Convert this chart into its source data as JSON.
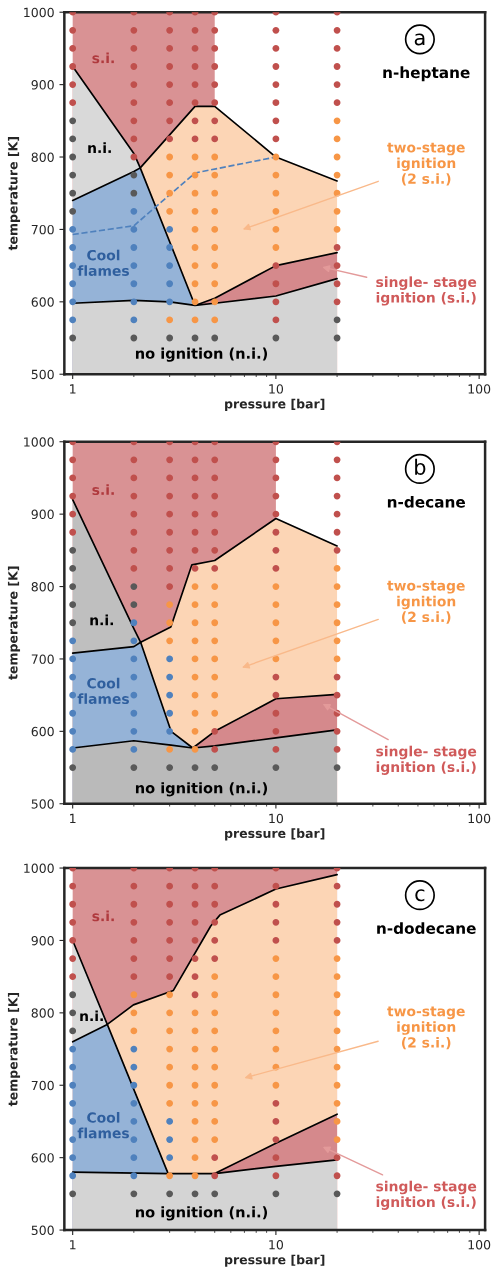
{
  "chart_data": [
    {
      "type": "scatter",
      "xlabel": "pressure [bar]",
      "ylabel": "temperature [K]",
      "log": "x",
      "xlim": [
        0.91,
        107
      ],
      "ylim": [
        500,
        1000
      ],
      "xticks": [
        1,
        10,
        100
      ],
      "yticks": [
        500,
        600,
        700,
        800,
        900,
        1000
      ],
      "annotations": [
        "a",
        "n-heptane",
        "s.i.",
        "n.i.",
        "Cool\nflames",
        "two-stage\nignition\n(2 s.i.)",
        "single- stage\nignition (s.i.)",
        "no ignition (n.i.)"
      ],
      "series": [
        {
          "type": "area",
          "color": "#d99294",
          "x": [
            1,
            5
          ],
          "values": [
            1000,
            1000
          ]
        },
        {
          "type": "area",
          "color": "#fcd5b5",
          "x": [
            2.15,
            4,
            5,
            10,
            20
          ],
          "values": [
            785,
            870,
            870,
            800,
            767
          ]
        },
        {
          "type": "area",
          "color": "#d9d9d9",
          "x": [
            1,
            2,
            2.15
          ],
          "values": [
            925,
            805,
            785
          ]
        },
        {
          "type": "area",
          "color": "#95b3d7",
          "x": [
            1,
            2,
            2.15,
            4
          ],
          "values": [
            740,
            780,
            785,
            595
          ]
        },
        {
          "type": "area",
          "color": "#d5898c",
          "x": [
            4,
            5,
            10,
            20
          ],
          "values": [
            595,
            605,
            650,
            668
          ]
        },
        {
          "type": "area",
          "color": "#d4d4d4",
          "x": [
            1,
            2,
            3,
            4,
            5,
            10,
            20
          ],
          "values": [
            598,
            602,
            600,
            595,
            598,
            608,
            632
          ]
        },
        {
          "type": "line",
          "color": "#4f81bd",
          "line_style": "dashed",
          "x": [
            1,
            2,
            4,
            10
          ],
          "values": [
            693,
            705,
            778,
            800
          ]
        },
        {
          "marker": "circle",
          "color": "#c0504d",
          "x": [
            1,
            1,
            1,
            1,
            1,
            1,
            2,
            2,
            2,
            2,
            2,
            2,
            2,
            2,
            2,
            3,
            3,
            3,
            3,
            3,
            3,
            3,
            3,
            4,
            4,
            4,
            4,
            4,
            4,
            4,
            4,
            5,
            5,
            5,
            5,
            5,
            5,
            5,
            5,
            10,
            10,
            10,
            10,
            10,
            10,
            10,
            10,
            10,
            10,
            10,
            10,
            20,
            20,
            20,
            20,
            20,
            20,
            20,
            20,
            20,
            20
          ],
          "values": [
            1000,
            975,
            950,
            925,
            900,
            875,
            1000,
            975,
            950,
            925,
            900,
            875,
            850,
            825,
            800,
            1000,
            975,
            950,
            925,
            900,
            875,
            850,
            825,
            1000,
            975,
            950,
            925,
            900,
            875,
            850,
            825,
            1000,
            975,
            950,
            925,
            900,
            875,
            850,
            825,
            1000,
            975,
            950,
            925,
            900,
            875,
            850,
            825,
            650,
            625,
            600,
            575,
            1000,
            975,
            950,
            925,
            900,
            875,
            675,
            650,
            625,
            600
          ]
        },
        {
          "marker": "circle",
          "color": "#f79646",
          "x": [
            3,
            3,
            3,
            3,
            3,
            4,
            4,
            4,
            4,
            4,
            4,
            4,
            4,
            4,
            4,
            5,
            5,
            5,
            5,
            5,
            5,
            5,
            5,
            5,
            5,
            10,
            10,
            10,
            10,
            10,
            10,
            20,
            20,
            20,
            20,
            20,
            20,
            20
          ],
          "values": [
            800,
            775,
            750,
            725,
            575,
            800,
            775,
            750,
            725,
            700,
            675,
            650,
            625,
            600,
            575,
            800,
            775,
            750,
            725,
            700,
            675,
            650,
            625,
            600,
            575,
            800,
            775,
            750,
            725,
            700,
            675,
            850,
            825,
            800,
            775,
            750,
            725,
            700
          ]
        },
        {
          "marker": "circle",
          "color": "#4f81bd",
          "x": [
            1,
            1,
            1,
            1,
            1,
            1,
            2,
            2,
            2,
            2,
            2,
            2,
            2,
            3,
            3,
            3,
            3,
            3
          ],
          "values": [
            700,
            675,
            650,
            625,
            600,
            575,
            725,
            700,
            675,
            650,
            625,
            600,
            575,
            700,
            675,
            650,
            625,
            600
          ]
        },
        {
          "marker": "circle",
          "color": "#595959",
          "x": [
            1,
            1,
            1,
            1,
            1,
            1,
            1,
            2,
            2,
            2,
            3,
            4,
            5,
            10,
            20,
            20
          ],
          "values": [
            850,
            825,
            800,
            775,
            750,
            725,
            550,
            775,
            750,
            550,
            550,
            550,
            550,
            550,
            575,
            550
          ]
        }
      ]
    },
    {
      "type": "scatter",
      "xlabel": "pressure [bar]",
      "ylabel": "temperature [K]",
      "log": "x",
      "xlim": [
        0.91,
        107
      ],
      "ylim": [
        500,
        1000
      ],
      "xticks": [
        1,
        10,
        100
      ],
      "yticks": [
        500,
        600,
        700,
        800,
        900,
        1000
      ],
      "annotations": [
        "b",
        "n-decane",
        "s.i.",
        "n.i.",
        "Cool\nflames",
        "two-stage\nignition\n(2 s.i.)",
        "single- stage\nignition (s.i.)",
        "no ignition (n.i.)"
      ],
      "series": [
        {
          "type": "area",
          "color": "#d99294",
          "x": [
            1,
            10
          ],
          "values": [
            1000,
            1000
          ]
        },
        {
          "type": "area",
          "color": "#fcd5b5",
          "x": [
            2.16,
            3.04,
            3.86,
            5,
            10,
            20
          ],
          "values": [
            723,
            744,
            830,
            836,
            894,
            856
          ]
        },
        {
          "type": "area",
          "color": "#bfbfbf",
          "x": [
            1,
            2,
            2.16
          ],
          "values": [
            920,
            742,
            723
          ]
        },
        {
          "type": "area",
          "color": "#95b3d7",
          "x": [
            1,
            2,
            2.16,
            3.05,
            3.9
          ],
          "values": [
            708,
            717,
            723,
            600,
            577
          ]
        },
        {
          "type": "area",
          "color": "#d5898c",
          "x": [
            3.9,
            5,
            10,
            20
          ],
          "values": [
            577,
            600,
            645,
            651
          ]
        },
        {
          "type": "area",
          "color": "#bababa",
          "x": [
            1,
            2,
            3.05,
            3.9,
            5,
            10,
            20
          ],
          "values": [
            577,
            587,
            581,
            577,
            580,
            591,
            602
          ]
        },
        {
          "marker": "circle",
          "color": "#c0504d",
          "x": [
            1,
            1,
            1,
            1,
            1,
            1,
            2,
            2,
            2,
            2,
            2,
            2,
            2,
            2,
            3,
            3,
            3,
            3,
            3,
            3,
            3,
            3,
            3,
            4,
            4,
            4,
            4,
            4,
            4,
            4,
            4,
            5,
            5,
            5,
            5,
            5,
            5,
            5,
            5,
            5,
            5,
            10,
            10,
            10,
            10,
            10,
            10,
            10,
            10,
            10,
            10,
            10,
            10,
            10,
            20,
            20,
            20,
            20,
            20,
            20,
            20,
            20,
            20,
            20,
            20,
            20
          ],
          "values": [
            1000,
            975,
            950,
            925,
            900,
            875,
            1000,
            975,
            950,
            925,
            900,
            875,
            850,
            825,
            1000,
            975,
            950,
            925,
            900,
            875,
            850,
            825,
            800,
            1000,
            975,
            950,
            925,
            900,
            875,
            850,
            825,
            1000,
            975,
            950,
            925,
            900,
            875,
            850,
            825,
            600,
            575,
            1000,
            975,
            950,
            925,
            900,
            875,
            850,
            825,
            675,
            650,
            625,
            600,
            575,
            1000,
            975,
            950,
            925,
            900,
            875,
            850,
            675,
            650,
            625,
            600,
            575
          ]
        },
        {
          "marker": "circle",
          "color": "#f79646",
          "x": [
            3,
            3,
            3,
            3,
            4,
            4,
            4,
            4,
            4,
            4,
            4,
            4,
            4,
            4,
            5,
            5,
            5,
            5,
            5,
            5,
            5,
            5,
            10,
            10,
            10,
            10,
            10,
            20,
            20,
            20,
            20,
            20,
            20
          ],
          "values": [
            775,
            750,
            725,
            575,
            800,
            775,
            750,
            725,
            700,
            675,
            650,
            625,
            600,
            575,
            800,
            775,
            750,
            725,
            700,
            675,
            650,
            625,
            800,
            775,
            750,
            725,
            700,
            825,
            800,
            775,
            750,
            725,
            700
          ]
        },
        {
          "marker": "circle",
          "color": "#4f81bd",
          "x": [
            1,
            1,
            1,
            1,
            1,
            1,
            1,
            2,
            2,
            2,
            2,
            2,
            2,
            2,
            2,
            3,
            3,
            3,
            3,
            3
          ],
          "values": [
            725,
            700,
            675,
            650,
            625,
            600,
            575,
            750,
            725,
            700,
            675,
            650,
            625,
            600,
            575,
            700,
            675,
            650,
            625,
            600
          ]
        },
        {
          "marker": "circle",
          "color": "#595959",
          "x": [
            1,
            1,
            1,
            1,
            1,
            1,
            2,
            2,
            2,
            3,
            4,
            5,
            10,
            20
          ],
          "values": [
            850,
            825,
            800,
            775,
            750,
            550,
            800,
            775,
            550,
            550,
            550,
            550,
            550,
            550
          ]
        }
      ]
    },
    {
      "type": "scatter",
      "xlabel": "pressure [bar]",
      "ylabel": "temperature [K]",
      "log": "x",
      "xlim": [
        0.91,
        107
      ],
      "ylim": [
        500,
        1000
      ],
      "xticks": [
        1,
        10,
        100
      ],
      "yticks": [
        500,
        600,
        700,
        800,
        900,
        1000
      ],
      "annotations": [
        "c",
        "n-dodecane",
        "s.i.",
        "n.i.",
        "Cool\nflames",
        "two-stage\nignition\n(2 s.i.)",
        "single- stage\nignition (s.i.)",
        "no ignition (n.i.)"
      ],
      "series": [
        {
          "type": "area",
          "color": "#d99294",
          "x": [
            1,
            20
          ],
          "values": [
            1000,
            1000
          ]
        },
        {
          "type": "area",
          "color": "#fcd5b5",
          "x": [
            1.48,
            1.99,
            3.13,
            4.78,
            5.3,
            10,
            20
          ],
          "values": [
            784,
            811,
            831,
            920,
            935,
            971,
            991
          ]
        },
        {
          "type": "area",
          "color": "#d9d9d9",
          "x": [
            1,
            1.48
          ],
          "values": [
            900,
            784
          ]
        },
        {
          "type": "area",
          "color": "#95b3d7",
          "x": [
            1,
            1.48,
            2.95
          ],
          "values": [
            760,
            784,
            578
          ]
        },
        {
          "type": "area",
          "color": "#d5898c",
          "x": [
            5,
            10,
            20
          ],
          "values": [
            578,
            620,
            660
          ]
        },
        {
          "type": "area",
          "color": "#d4d4d4",
          "x": [
            1,
            2.95,
            5,
            10,
            20
          ],
          "values": [
            580,
            578,
            578,
            588,
            597
          ]
        },
        {
          "marker": "circle",
          "color": "#c0504d",
          "x": [
            1,
            1,
            1,
            1,
            1,
            1,
            1,
            2,
            2,
            2,
            2,
            2,
            2,
            2,
            3,
            3,
            3,
            3,
            3,
            3,
            3,
            4,
            4,
            4,
            4,
            4,
            4,
            4,
            4,
            5,
            5,
            5,
            5,
            5,
            5,
            5,
            5,
            10,
            10,
            10,
            10,
            10,
            10,
            10,
            10,
            10,
            10,
            20,
            20,
            20,
            20,
            20,
            20,
            20
          ],
          "values": [
            1000,
            975,
            950,
            925,
            900,
            875,
            850,
            1000,
            975,
            950,
            925,
            900,
            875,
            850,
            1000,
            975,
            950,
            925,
            900,
            875,
            850,
            1000,
            975,
            950,
            925,
            900,
            875,
            850,
            825,
            1000,
            975,
            950,
            925,
            900,
            875,
            600,
            575,
            1000,
            975,
            950,
            925,
            900,
            675,
            650,
            625,
            600,
            575,
            1000,
            975,
            950,
            925,
            900,
            600,
            575
          ]
        },
        {
          "marker": "circle",
          "color": "#f79646",
          "x": [
            2,
            2,
            2,
            3,
            3,
            3,
            3,
            3,
            3,
            3,
            3,
            4,
            4,
            4,
            4,
            4,
            4,
            4,
            4,
            4,
            4,
            5,
            5,
            5,
            5,
            5,
            5,
            5,
            5,
            5,
            5,
            10,
            10,
            10,
            10,
            10,
            10,
            10,
            10,
            20,
            20,
            20,
            20,
            20,
            20,
            20,
            20,
            20,
            20,
            20
          ],
          "values": [
            825,
            800,
            775,
            825,
            800,
            775,
            750,
            725,
            700,
            675,
            575,
            800,
            775,
            750,
            725,
            700,
            675,
            650,
            625,
            600,
            575,
            850,
            825,
            800,
            775,
            750,
            725,
            700,
            675,
            650,
            625,
            875,
            850,
            825,
            800,
            775,
            750,
            725,
            700,
            875,
            850,
            825,
            800,
            775,
            750,
            725,
            700,
            675,
            650,
            625
          ]
        },
        {
          "marker": "circle",
          "color": "#4f81bd",
          "x": [
            1,
            1,
            1,
            1,
            1,
            1,
            1,
            1,
            2,
            2,
            2,
            2,
            2,
            2,
            2,
            2,
            3,
            3,
            3
          ],
          "values": [
            750,
            725,
            700,
            675,
            650,
            625,
            600,
            575,
            750,
            725,
            700,
            675,
            650,
            625,
            600,
            575,
            650,
            625,
            600
          ]
        },
        {
          "marker": "circle",
          "color": "#595959",
          "x": [
            1,
            1,
            1,
            1,
            2,
            3,
            4,
            5,
            10,
            20
          ],
          "values": [
            825,
            800,
            775,
            550,
            550,
            550,
            550,
            550,
            550,
            550
          ]
        }
      ]
    }
  ]
}
